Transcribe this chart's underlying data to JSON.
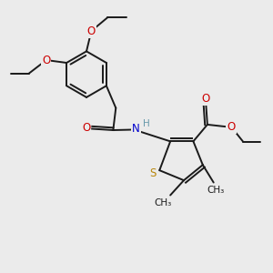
{
  "bg_color": "#ebebeb",
  "bond_color": "#1a1a1a",
  "S_color": "#b8860b",
  "N_color": "#0000cd",
  "O_color": "#cc0000",
  "lw": 1.4,
  "fs": 8.5,
  "fig_size": [
    3.0,
    3.0
  ],
  "dpi": 100,
  "xlim": [
    0,
    10
  ],
  "ylim": [
    0,
    10
  ]
}
